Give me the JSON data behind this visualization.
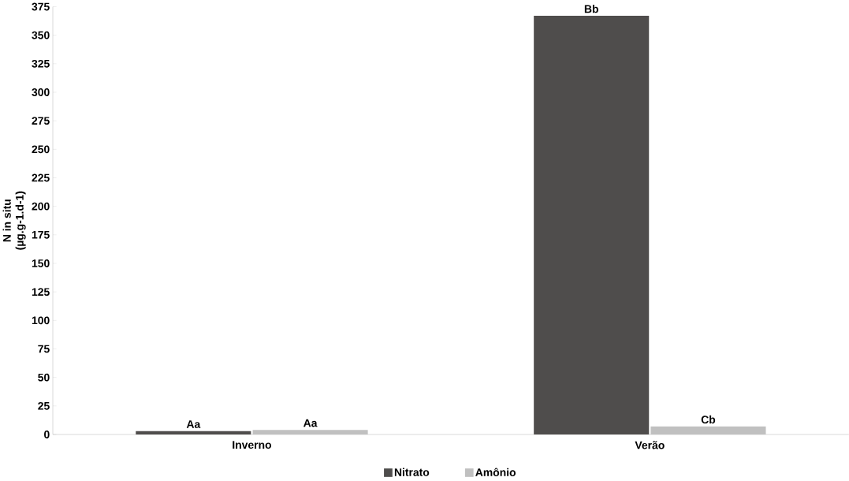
{
  "chart_data": {
    "type": "bar",
    "ylabel": "N in situ\n(µg.g-1.d-1)",
    "categories": [
      "Inverno",
      "Verão"
    ],
    "series": [
      {
        "name": "Nitrato",
        "color": "#4f4d4c",
        "values": [
          3,
          367
        ],
        "value_labels": [
          "Aa",
          "Bb"
        ]
      },
      {
        "name": "Amônio",
        "color": "#c0c0c0",
        "values": [
          4,
          7
        ],
        "value_labels": [
          "Aa",
          "Cb"
        ]
      }
    ],
    "ylim": [
      0,
      375
    ],
    "yticks": [
      0,
      25,
      50,
      75,
      100,
      125,
      150,
      175,
      200,
      225,
      250,
      275,
      300,
      325,
      350,
      375
    ],
    "grid": false,
    "legend": "bottom"
  }
}
